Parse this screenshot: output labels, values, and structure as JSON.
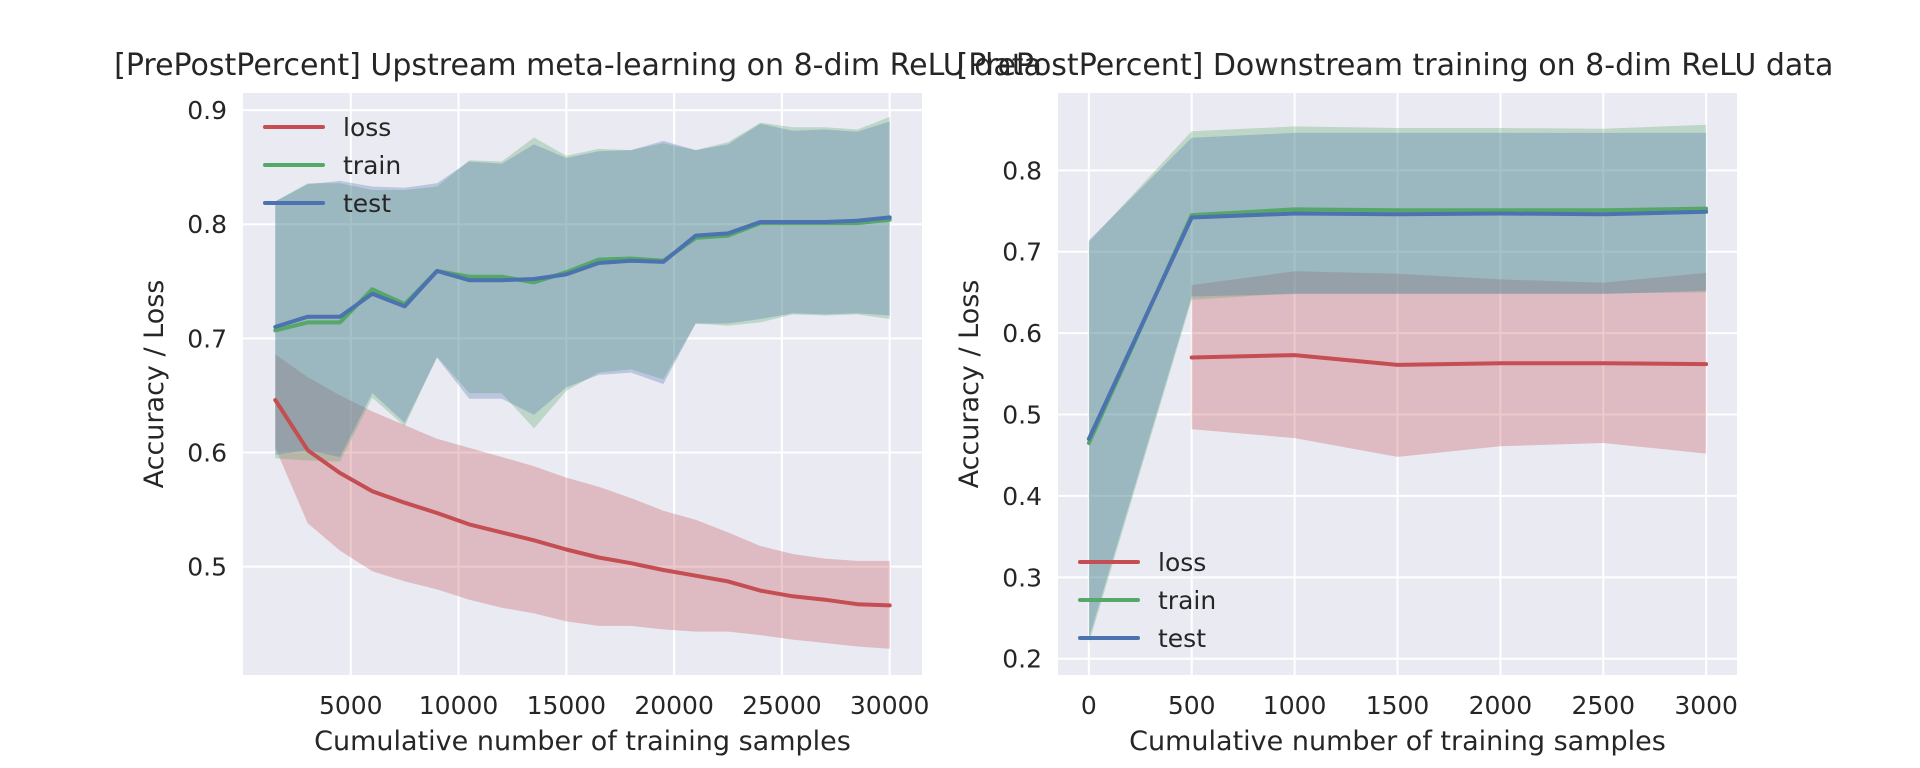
{
  "colors": {
    "loss": "#c44e52",
    "train": "#55a868",
    "test": "#4c72b0",
    "axes_bg": "#eaeaf2",
    "grid": "#ffffff"
  },
  "chart_data": [
    {
      "type": "line",
      "title": "[PrePostPercent] Upstream meta-learning on 8-dim ReLU data",
      "xlabel": "Cumulative number of training samples",
      "ylabel": "Accuracy / Loss",
      "xlim": [
        0,
        31500
      ],
      "ylim": [
        0.405,
        0.915
      ],
      "xticks": [
        5000,
        10000,
        15000,
        20000,
        25000,
        30000
      ],
      "yticks": [
        0.5,
        0.6,
        0.7,
        0.8,
        0.9
      ],
      "grid": true,
      "legend": "top-left",
      "x": [
        1500,
        3000,
        4500,
        6000,
        7500,
        9000,
        10500,
        12000,
        13500,
        15000,
        16500,
        18000,
        19500,
        21000,
        22500,
        24000,
        25500,
        27000,
        28500,
        30000
      ],
      "series": [
        {
          "name": "loss",
          "values": [
            0.646,
            0.602,
            0.582,
            0.566,
            0.556,
            0.547,
            0.537,
            0.53,
            0.523,
            0.515,
            0.508,
            0.503,
            0.497,
            0.492,
            0.487,
            0.479,
            0.474,
            0.471,
            0.467,
            0.466
          ],
          "upper": [
            0.686,
            0.666,
            0.65,
            0.636,
            0.624,
            0.612,
            0.604,
            0.596,
            0.588,
            0.578,
            0.57,
            0.56,
            0.549,
            0.541,
            0.53,
            0.518,
            0.511,
            0.507,
            0.505,
            0.505
          ],
          "lower": [
            0.604,
            0.538,
            0.514,
            0.496,
            0.487,
            0.48,
            0.471,
            0.464,
            0.459,
            0.452,
            0.448,
            0.448,
            0.445,
            0.443,
            0.443,
            0.44,
            0.436,
            0.433,
            0.43,
            0.428
          ]
        },
        {
          "name": "train",
          "values": [
            0.707,
            0.714,
            0.714,
            0.743,
            0.73,
            0.759,
            0.754,
            0.754,
            0.749,
            0.758,
            0.769,
            0.77,
            0.768,
            0.788,
            0.79,
            0.801,
            0.801,
            0.801,
            0.801,
            0.804
          ],
          "upper": [
            0.82,
            0.836,
            0.836,
            0.83,
            0.83,
            0.833,
            0.856,
            0.855,
            0.876,
            0.86,
            0.866,
            0.865,
            0.871,
            0.865,
            0.872,
            0.889,
            0.885,
            0.885,
            0.883,
            0.894
          ],
          "lower": [
            0.595,
            0.593,
            0.592,
            0.648,
            0.623,
            0.684,
            0.652,
            0.652,
            0.621,
            0.654,
            0.67,
            0.673,
            0.664,
            0.713,
            0.711,
            0.714,
            0.721,
            0.72,
            0.721,
            0.717
          ]
        },
        {
          "name": "test",
          "values": [
            0.71,
            0.719,
            0.719,
            0.739,
            0.728,
            0.759,
            0.751,
            0.751,
            0.752,
            0.756,
            0.766,
            0.768,
            0.767,
            0.79,
            0.792,
            0.802,
            0.802,
            0.802,
            0.803,
            0.806
          ],
          "upper": [
            0.82,
            0.835,
            0.838,
            0.833,
            0.832,
            0.836,
            0.855,
            0.853,
            0.87,
            0.858,
            0.864,
            0.865,
            0.873,
            0.865,
            0.87,
            0.888,
            0.882,
            0.883,
            0.881,
            0.89
          ],
          "lower": [
            0.598,
            0.602,
            0.596,
            0.652,
            0.626,
            0.683,
            0.647,
            0.647,
            0.633,
            0.657,
            0.668,
            0.67,
            0.66,
            0.713,
            0.713,
            0.717,
            0.722,
            0.721,
            0.722,
            0.72
          ]
        }
      ]
    },
    {
      "type": "line",
      "title": "[PrePostPercent] Downstream training on 8-dim ReLU data",
      "xlabel": "Cumulative number of training samples",
      "ylabel": "Accuracy / Loss",
      "xlim": [
        -150,
        3150
      ],
      "ylim": [
        0.18,
        0.895
      ],
      "xticks": [
        0,
        500,
        1000,
        1500,
        2000,
        2500,
        3000
      ],
      "yticks": [
        0.2,
        0.3,
        0.4,
        0.5,
        0.6,
        0.7,
        0.8
      ],
      "grid": true,
      "legend": "bottom-left",
      "x": [
        0,
        500,
        1000,
        1500,
        2000,
        2500,
        3000
      ],
      "series": [
        {
          "name": "loss",
          "x": [
            500,
            1000,
            1500,
            2000,
            2500,
            3000
          ],
          "values": [
            0.57,
            0.573,
            0.561,
            0.563,
            0.563,
            0.562
          ],
          "upper": [
            0.659,
            0.676,
            0.673,
            0.666,
            0.662,
            0.674
          ],
          "lower": [
            0.482,
            0.471,
            0.448,
            0.461,
            0.465,
            0.452
          ]
        },
        {
          "name": "train",
          "values": [
            0.465,
            0.745,
            0.752,
            0.751,
            0.751,
            0.751,
            0.753
          ],
          "upper": [
            0.712,
            0.848,
            0.854,
            0.852,
            0.852,
            0.851,
            0.856
          ],
          "lower": [
            0.219,
            0.641,
            0.649,
            0.649,
            0.649,
            0.649,
            0.65
          ]
        },
        {
          "name": "test",
          "values": [
            0.47,
            0.742,
            0.747,
            0.746,
            0.747,
            0.746,
            0.749
          ],
          "upper": [
            0.714,
            0.84,
            0.846,
            0.846,
            0.846,
            0.846,
            0.846
          ],
          "lower": [
            0.225,
            0.645,
            0.648,
            0.648,
            0.648,
            0.648,
            0.652
          ]
        }
      ]
    }
  ]
}
